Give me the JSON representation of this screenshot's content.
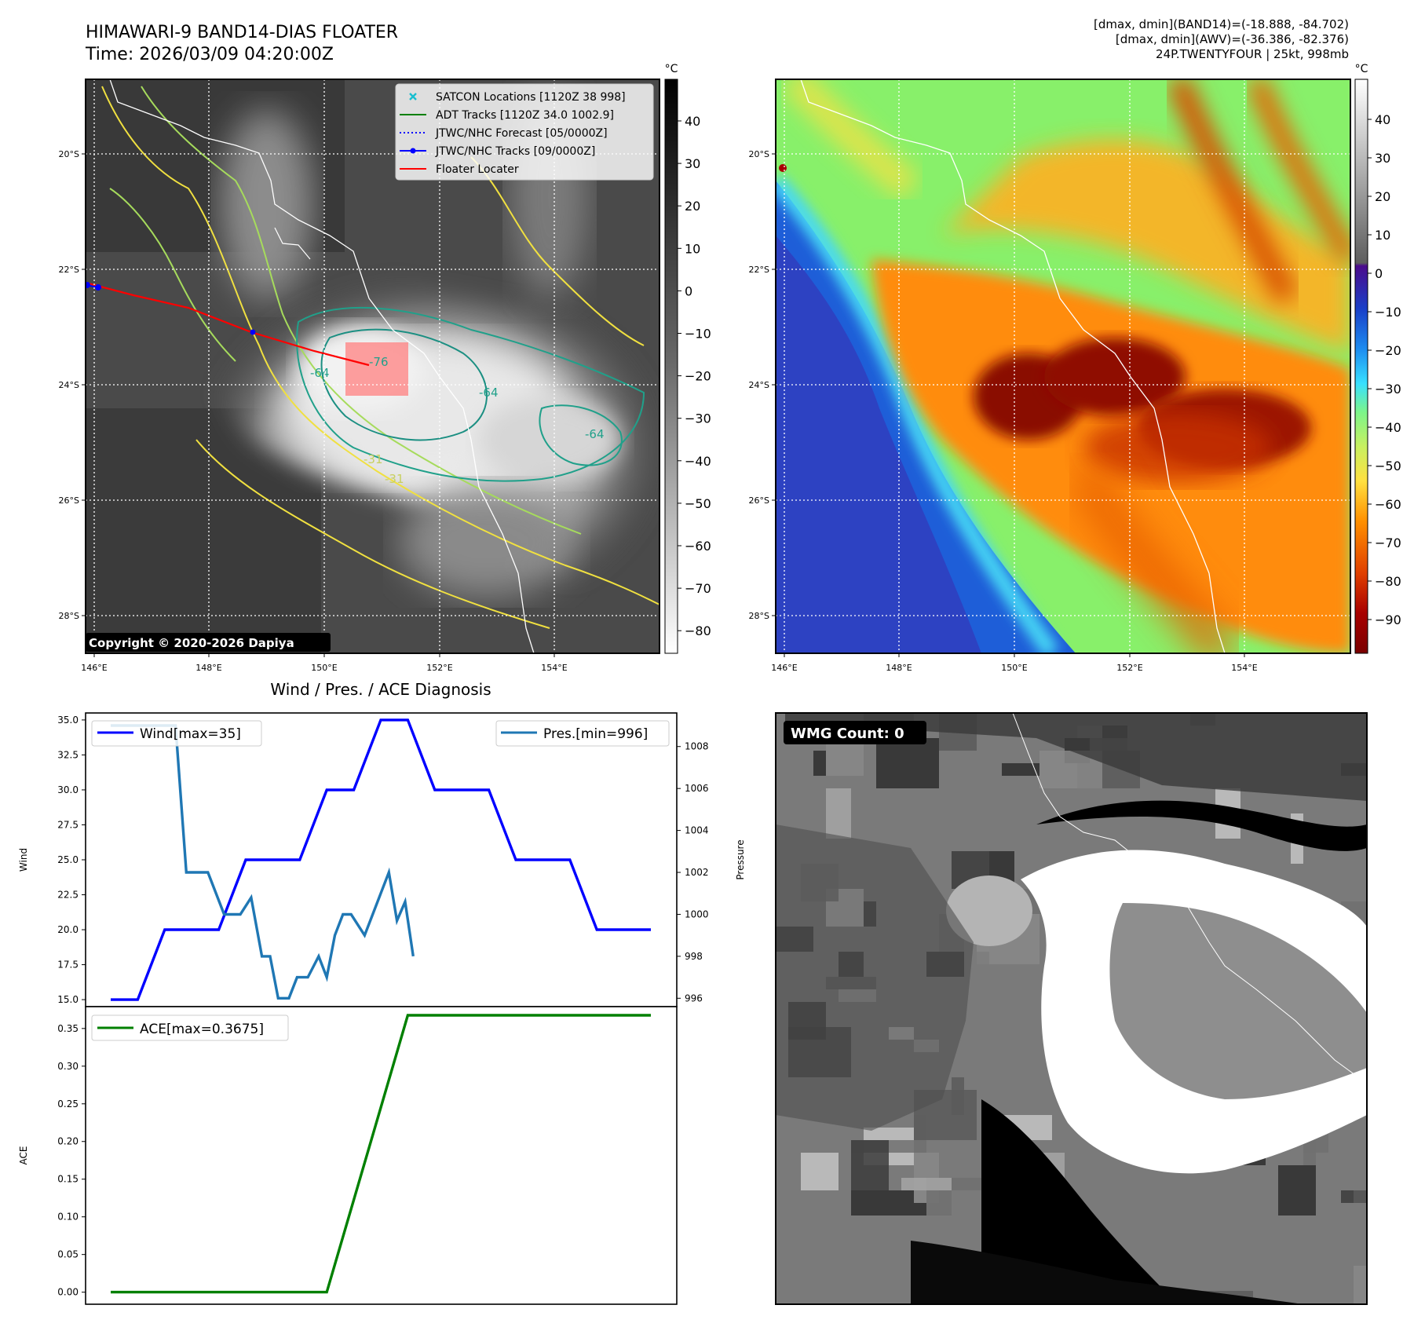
{
  "header": {
    "title_line1": "HIMAWARI-9 BAND14-DIAS FLOATER",
    "title_line2": "Time: 2026/03/09 04:20:00Z",
    "stats_line1": "[dmax, dmin](BAND14)=(-18.888, -84.702)",
    "stats_line2": "[dmax, dmin](AWV)=(-36.386, -82.376)",
    "stats_line3": "24P.TWENTYFOUR | 25kt, 998mb"
  },
  "map_common": {
    "lat_ticks": [
      "20°S",
      "22°S",
      "24°S",
      "26°S",
      "28°S"
    ],
    "lon_ticks": [
      "146°E",
      "148°E",
      "150°E",
      "152°E",
      "154°E"
    ],
    "colorbar_unit": "°C"
  },
  "ir_panel": {
    "legend": [
      {
        "label": "SATCON Locations [1120Z 38 998]",
        "color": "#17becf",
        "marker": "x"
      },
      {
        "label": "ADT Tracks [1120Z 34.0 1002.9]",
        "color": "#008000",
        "marker": "line"
      },
      {
        "label": "JTWC/NHC Forecast [05/0000Z]",
        "color": "#0000ff",
        "marker": "dotted"
      },
      {
        "label": "JTWC/NHC Tracks [09/0000Z]",
        "color": "#0000ff",
        "marker": "line-dot"
      },
      {
        "label": "Floater Locater",
        "color": "#ff0000",
        "marker": "line"
      }
    ],
    "colorbar_ticks": [
      "40",
      "30",
      "20",
      "10",
      "0",
      "−10",
      "−20",
      "−30",
      "−40",
      "−50",
      "−60",
      "−70",
      "−80"
    ],
    "copyright": "Copyright © 2020-2026 Dapiya",
    "contour_labels": [
      "-76",
      "-64",
      "-64",
      "-64",
      "-31",
      "-31"
    ]
  },
  "awv_panel": {
    "colorbar_ticks": [
      "40",
      "30",
      "20",
      "10",
      "0",
      "−10",
      "−20",
      "−30",
      "−40",
      "−50",
      "−60",
      "−70",
      "−80",
      "−90"
    ]
  },
  "wmg_panel": {
    "label": "WMG Count: 0"
  },
  "colors": {
    "wind": "#0000ff",
    "pressure": "#1f77b4",
    "ace": "#008000",
    "floater": "#ff0000"
  },
  "chart_data": [
    {
      "type": "line",
      "title": "Wind / Pres. / ACE Diagnosis",
      "ylabel": "Wind",
      "y2label": "Pressure",
      "ylim": [
        14.5,
        35.5
      ],
      "y2lim": [
        995.6,
        1009.6
      ],
      "yticks": [
        "35.0",
        "32.5",
        "30.0",
        "27.5",
        "25.0",
        "22.5",
        "20.0",
        "17.5",
        "15.0"
      ],
      "y2ticks": [
        "1008",
        "1006",
        "1004",
        "1002",
        "1000",
        "998",
        "996"
      ],
      "series": [
        {
          "name": "Wind[max=35]",
          "axis": "left",
          "x": [
            0,
            1,
            2,
            3,
            4,
            5,
            6,
            7,
            8,
            9,
            10,
            11,
            12,
            13,
            14,
            15,
            16,
            17,
            18,
            19,
            20
          ],
          "values": [
            15,
            15,
            20,
            20,
            20,
            25,
            25,
            25,
            30,
            30,
            35,
            35,
            30,
            30,
            30,
            25,
            25,
            25,
            20,
            20,
            20
          ]
        },
        {
          "name": "Pres.[min=996]",
          "axis": "right",
          "x": [
            0,
            1,
            1.5,
            2,
            2.4,
            2.8,
            3.2,
            3.6,
            4.2,
            4.8,
            5.2,
            5.6,
            5.9,
            6.2,
            6.6,
            6.9,
            7.3,
            7.7,
            8.0,
            8.3,
            8.6,
            8.9,
            9.4,
            9.7,
            10.0,
            10.3,
            10.6,
            10.9,
            11.2
          ],
          "values": [
            1009,
            1009,
            1009,
            1009,
            1009,
            1002,
            1002,
            1002,
            1000,
            1000,
            1000.8,
            998,
            998,
            996,
            996,
            997,
            997,
            998,
            997,
            999,
            1000,
            1000,
            999,
            1000,
            1001,
            1002,
            999.7,
            1000.6,
            998
          ]
        }
      ]
    },
    {
      "type": "line",
      "ylabel": "ACE",
      "ylim": [
        -0.016,
        0.379
      ],
      "yticks": [
        "0.35",
        "0.30",
        "0.25",
        "0.20",
        "0.15",
        "0.10",
        "0.05",
        "0.00"
      ],
      "series": [
        {
          "name": "ACE[max=0.3675]",
          "x": [
            0,
            1,
            2,
            3,
            4,
            5,
            6,
            7,
            8,
            9,
            10,
            11,
            12,
            13,
            14,
            15,
            16,
            17,
            18,
            19,
            20
          ],
          "values": [
            0,
            0,
            0,
            0,
            0,
            0,
            0,
            0,
            0,
            0.1225,
            0.245,
            0.3675,
            0.3675,
            0.3675,
            0.3675,
            0.3675,
            0.3675,
            0.3675,
            0.3675,
            0.3675,
            0.3675
          ]
        }
      ]
    }
  ]
}
